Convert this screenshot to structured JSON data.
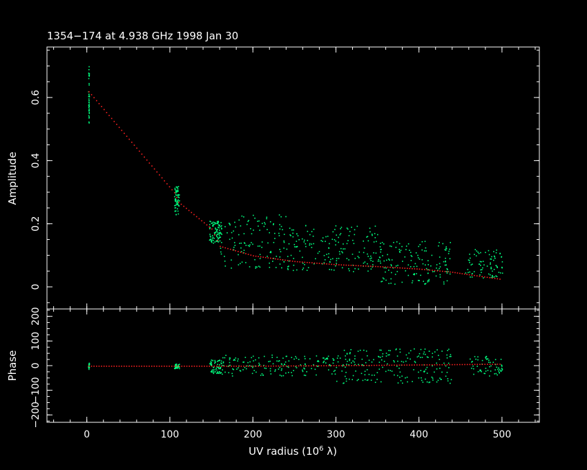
{
  "chart_data": {
    "type": "scatter",
    "title": "1354−174 at 4.938 GHz 1998 Jan 30",
    "xlabel_main": "UV radius  (10",
    "xlabel_exp": "6",
    "xlabel_end": " λ)",
    "xlim": [
      -48,
      545
    ],
    "xticks": [
      0,
      100,
      200,
      300,
      400,
      500
    ],
    "xtick_labels": [
      "0",
      "100",
      "200",
      "300",
      "400",
      "500"
    ],
    "colors": {
      "data": "#00ff7f",
      "model": "#ff2020",
      "axes": "#ffffff",
      "background": "#000000"
    },
    "panels": [
      {
        "name": "amplitude",
        "ylabel": "Amplitude",
        "ylim": [
          -0.07,
          0.76
        ],
        "yticks": [
          0,
          0.2,
          0.4,
          0.6
        ],
        "ytick_labels": [
          "0",
          "0.2",
          "0.4",
          "0.6"
        ],
        "data_clusters": [
          {
            "x": [
              1.5,
              2.5
            ],
            "y": [
              0.52,
              0.7
            ],
            "n": 40
          },
          {
            "x": [
              105,
              111
            ],
            "y": [
              0.23,
              0.32
            ],
            "n": 60
          },
          {
            "x": [
              147,
              162
            ],
            "y": [
              0.14,
              0.21
            ],
            "n": 90
          },
          {
            "x": [
              160,
              240
            ],
            "y": [
              0.06,
              0.23
            ],
            "n": 120
          },
          {
            "x": [
              240,
              350
            ],
            "y": [
              0.05,
              0.2
            ],
            "n": 170
          },
          {
            "x": [
              350,
              440
            ],
            "y": [
              0.01,
              0.15
            ],
            "n": 150
          },
          {
            "x": [
              455,
              500
            ],
            "y": [
              0.03,
              0.12
            ],
            "n": 80
          }
        ],
        "model_curve": {
          "x": [
            2,
            105,
            110,
            150,
            160,
            200,
            250,
            300,
            350,
            400,
            440,
            460,
            500
          ],
          "y": [
            0.62,
            0.3,
            0.27,
            0.185,
            0.13,
            0.1,
            0.082,
            0.072,
            0.066,
            0.058,
            0.048,
            0.04,
            0.025
          ]
        }
      },
      {
        "name": "phase",
        "ylabel": "Phase",
        "ylim": [
          -230,
          230
        ],
        "yticks": [
          -200,
          -100,
          0,
          100,
          200
        ],
        "ytick_labels": [
          "−200",
          "−100",
          "0",
          "100",
          "200"
        ],
        "data_clusters": [
          {
            "x": [
              1.5,
              2.5
            ],
            "y": [
              -15,
              15
            ],
            "n": 20
          },
          {
            "x": [
              105,
              111
            ],
            "y": [
              -10,
              10
            ],
            "n": 40
          },
          {
            "x": [
              147,
              162
            ],
            "y": [
              -30,
              25
            ],
            "n": 60
          },
          {
            "x": [
              160,
              300
            ],
            "y": [
              -40,
              45
            ],
            "n": 160
          },
          {
            "x": [
              300,
              440
            ],
            "y": [
              -70,
              70
            ],
            "n": 200
          },
          {
            "x": [
              460,
              500
            ],
            "y": [
              -40,
              40
            ],
            "n": 60
          }
        ],
        "model_curve": {
          "x": [
            2,
            150,
            200,
            300,
            400,
            500
          ],
          "y": [
            0,
            0,
            0,
            2,
            5,
            8
          ]
        }
      }
    ]
  }
}
